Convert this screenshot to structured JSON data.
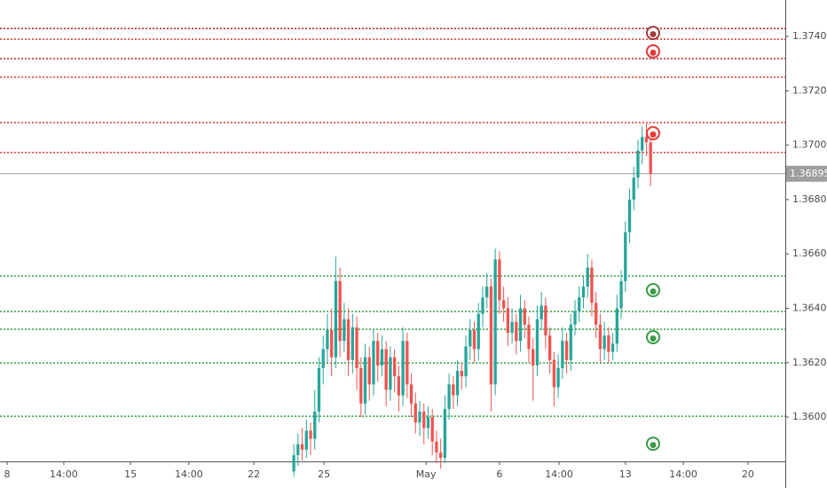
{
  "chart_data": {
    "type": "candlestick",
    "up_color": "#26a69a",
    "down_color": "#ef5350",
    "xlim": [
      0,
      187.1
    ],
    "ylim": [
      1.35837,
      1.37534
    ],
    "xticks": [
      {
        "value": 1.7,
        "label": "8"
      },
      {
        "value": 15.2,
        "label": "14:00"
      },
      {
        "value": 31.1,
        "label": "15"
      },
      {
        "value": 45,
        "label": "14:00"
      },
      {
        "value": 60.5,
        "label": "22"
      },
      {
        "value": 77.2,
        "label": "25"
      },
      {
        "value": 101.5,
        "label": "May"
      },
      {
        "value": 119,
        "label": "6"
      },
      {
        "value": 133.2,
        "label": "14:00"
      },
      {
        "value": 149,
        "label": "13"
      },
      {
        "value": 162.8,
        "label": "14:00"
      },
      {
        "value": 178.2,
        "label": "20"
      }
    ],
    "yticks": [
      {
        "value": 1.36,
        "label": "1.36000"
      },
      {
        "value": 1.362,
        "label": "1.36200"
      },
      {
        "value": 1.364,
        "label": "1.36400"
      },
      {
        "value": 1.366,
        "label": "1.36600"
      },
      {
        "value": 1.368,
        "label": "1.36800"
      },
      {
        "value": 1.37,
        "label": "1.37000"
      },
      {
        "value": 1.372,
        "label": "1.37200"
      },
      {
        "value": 1.374,
        "label": "1.37400"
      }
    ],
    "last_price": 1.36895,
    "last_price_color": "#9e9e9e",
    "levels": [
      {
        "value": 1.37429,
        "color": "#b71c1c"
      },
      {
        "value": 1.3739,
        "color": "#e53935"
      },
      {
        "value": 1.37318,
        "color": "#c62828"
      },
      {
        "value": 1.3725,
        "color": "#e53935"
      },
      {
        "value": 1.37083,
        "color": "#e53935"
      },
      {
        "value": 1.36973,
        "color": "#e53935"
      },
      {
        "value": 1.36519,
        "color": "#2e9e3e"
      },
      {
        "value": 1.36388,
        "color": "#2e9e3e"
      },
      {
        "value": 1.36323,
        "color": "#2e9e3e"
      },
      {
        "value": 1.36199,
        "color": "#2e9e3e"
      },
      {
        "value": 1.36003,
        "color": "#2e9e3e"
      }
    ],
    "markers": [
      {
        "x": 155.6,
        "price": 1.37413,
        "color": "#a33a3a"
      },
      {
        "x": 155.6,
        "price": 1.37345,
        "color": "#e53935"
      },
      {
        "x": 155.6,
        "price": 1.37044,
        "color": "#e53935"
      },
      {
        "x": 155.6,
        "price": 1.36467,
        "color": "#3a9a48"
      },
      {
        "x": 155.6,
        "price": 1.36294,
        "color": "#3a9a48"
      },
      {
        "x": 155.6,
        "price": 1.35902,
        "color": "#3a9a48"
      }
    ],
    "x": [
      70,
      71,
      72,
      73,
      74,
      75,
      76,
      77,
      78,
      79,
      80,
      81,
      82,
      83,
      84,
      85,
      86,
      87,
      88,
      89,
      90,
      91,
      92,
      93,
      94,
      95,
      96,
      97,
      98,
      99,
      100,
      101,
      102,
      103,
      104,
      105,
      106,
      107,
      108,
      109,
      110,
      111,
      112,
      113,
      114,
      115,
      116,
      117,
      118,
      119,
      120,
      121,
      122,
      123,
      124,
      125,
      126,
      127,
      128,
      129,
      130,
      131,
      132,
      133,
      134,
      135,
      136,
      137,
      138,
      139,
      140,
      141,
      142,
      143,
      144,
      145,
      146,
      147,
      148,
      149,
      150,
      151,
      152,
      153,
      154,
      155
    ],
    "ohlc": [
      [
        1.358,
        1.359,
        1.3578,
        1.3586
      ],
      [
        1.3586,
        1.3594,
        1.3582,
        1.359
      ],
      [
        1.359,
        1.3596,
        1.3584,
        1.3588
      ],
      [
        1.3588,
        1.3599,
        1.3585,
        1.3595
      ],
      [
        1.3595,
        1.3598,
        1.3586,
        1.3592
      ],
      [
        1.3592,
        1.361,
        1.3588,
        1.3602
      ],
      [
        1.3602,
        1.3622,
        1.3598,
        1.3618
      ],
      [
        1.3618,
        1.363,
        1.3612,
        1.3625
      ],
      [
        1.3625,
        1.3638,
        1.362,
        1.3632
      ],
      [
        1.3632,
        1.364,
        1.3615,
        1.3622
      ],
      [
        1.3622,
        1.3659,
        1.3618,
        1.365
      ],
      [
        1.365,
        1.3655,
        1.3622,
        1.3628
      ],
      [
        1.3628,
        1.3642,
        1.3624,
        1.3636
      ],
      [
        1.3636,
        1.364,
        1.3615,
        1.3621
      ],
      [
        1.3621,
        1.3638,
        1.3616,
        1.3633
      ],
      [
        1.3633,
        1.3637,
        1.361,
        1.3618
      ],
      [
        1.3618,
        1.3622,
        1.36,
        1.3605
      ],
      [
        1.3605,
        1.3627,
        1.3601,
        1.3622
      ],
      [
        1.3622,
        1.3626,
        1.3606,
        1.3612
      ],
      [
        1.3612,
        1.3632,
        1.3608,
        1.3628
      ],
      [
        1.3628,
        1.3631,
        1.3613,
        1.3619
      ],
      [
        1.3619,
        1.363,
        1.3615,
        1.3625
      ],
      [
        1.3625,
        1.3628,
        1.3604,
        1.361
      ],
      [
        1.361,
        1.3626,
        1.3606,
        1.3622
      ],
      [
        1.3622,
        1.3625,
        1.3609,
        1.3615
      ],
      [
        1.3615,
        1.3619,
        1.3602,
        1.3608
      ],
      [
        1.3608,
        1.3633,
        1.3604,
        1.3628
      ],
      [
        1.3628,
        1.3631,
        1.3607,
        1.3612
      ],
      [
        1.3612,
        1.3616,
        1.36,
        1.3605
      ],
      [
        1.3605,
        1.3609,
        1.3594,
        1.3598
      ],
      [
        1.3598,
        1.3606,
        1.3593,
        1.3602
      ],
      [
        1.3602,
        1.3605,
        1.359,
        1.3596
      ],
      [
        1.3596,
        1.3604,
        1.3592,
        1.36
      ],
      [
        1.36,
        1.3603,
        1.3586,
        1.3591
      ],
      [
        1.3591,
        1.3595,
        1.3583,
        1.3587
      ],
      [
        1.3587,
        1.3592,
        1.3581,
        1.3585
      ],
      [
        1.3585,
        1.3608,
        1.3583,
        1.3603
      ],
      [
        1.3603,
        1.3616,
        1.3599,
        1.3612
      ],
      [
        1.3612,
        1.3615,
        1.3603,
        1.3608
      ],
      [
        1.3608,
        1.3621,
        1.3604,
        1.3617
      ],
      [
        1.3617,
        1.362,
        1.361,
        1.3615
      ],
      [
        1.3615,
        1.363,
        1.3611,
        1.3626
      ],
      [
        1.3626,
        1.3636,
        1.3621,
        1.3632
      ],
      [
        1.3632,
        1.3635,
        1.362,
        1.3625
      ],
      [
        1.3625,
        1.3642,
        1.3621,
        1.3638
      ],
      [
        1.3638,
        1.3648,
        1.3633,
        1.3644
      ],
      [
        1.3644,
        1.3653,
        1.364,
        1.3648
      ],
      [
        1.3648,
        1.3651,
        1.3602,
        1.3612
      ],
      [
        1.3612,
        1.3662,
        1.3608,
        1.3658
      ],
      [
        1.3658,
        1.3661,
        1.3638,
        1.3643
      ],
      [
        1.3643,
        1.3648,
        1.3635,
        1.364
      ],
      [
        1.364,
        1.3644,
        1.3626,
        1.3631
      ],
      [
        1.3631,
        1.364,
        1.3627,
        1.3635
      ],
      [
        1.3635,
        1.3638,
        1.3623,
        1.3628
      ],
      [
        1.3628,
        1.3645,
        1.3624,
        1.364
      ],
      [
        1.364,
        1.3643,
        1.3629,
        1.3634
      ],
      [
        1.3634,
        1.3637,
        1.362,
        1.3625
      ],
      [
        1.3625,
        1.3629,
        1.3606,
        1.3619
      ],
      [
        1.3619,
        1.3641,
        1.3615,
        1.3636
      ],
      [
        1.3636,
        1.3646,
        1.3632,
        1.3641
      ],
      [
        1.3641,
        1.3644,
        1.3625,
        1.363
      ],
      [
        1.363,
        1.3633,
        1.3616,
        1.3621
      ],
      [
        1.3621,
        1.3624,
        1.3604,
        1.3611
      ],
      [
        1.3611,
        1.3623,
        1.3607,
        1.3618
      ],
      [
        1.3618,
        1.3633,
        1.3614,
        1.3628
      ],
      [
        1.3628,
        1.3631,
        1.3616,
        1.3621
      ],
      [
        1.3621,
        1.3638,
        1.3617,
        1.3634
      ],
      [
        1.3634,
        1.3643,
        1.363,
        1.3639
      ],
      [
        1.3639,
        1.3648,
        1.3635,
        1.3644
      ],
      [
        1.3644,
        1.3652,
        1.364,
        1.3648
      ],
      [
        1.3648,
        1.366,
        1.3644,
        1.3655
      ],
      [
        1.3655,
        1.3658,
        1.3637,
        1.3642
      ],
      [
        1.3642,
        1.3646,
        1.3629,
        1.3634
      ],
      [
        1.3634,
        1.3638,
        1.362,
        1.3625
      ],
      [
        1.3625,
        1.3635,
        1.3621,
        1.363
      ],
      [
        1.363,
        1.3633,
        1.362,
        1.3624
      ],
      [
        1.3624,
        1.3631,
        1.3621,
        1.3627
      ],
      [
        1.3627,
        1.3645,
        1.3624,
        1.364
      ],
      [
        1.364,
        1.3654,
        1.3636,
        1.365
      ],
      [
        1.365,
        1.3672,
        1.3646,
        1.3668
      ],
      [
        1.3668,
        1.3684,
        1.3664,
        1.368
      ],
      [
        1.368,
        1.3692,
        1.3676,
        1.3688
      ],
      [
        1.3688,
        1.3702,
        1.3684,
        1.3698
      ],
      [
        1.3698,
        1.3707,
        1.3693,
        1.3703
      ],
      [
        1.3703,
        1.3708,
        1.3696,
        1.3701
      ],
      [
        1.3701,
        1.3705,
        1.3685,
        1.36895
      ]
    ]
  }
}
